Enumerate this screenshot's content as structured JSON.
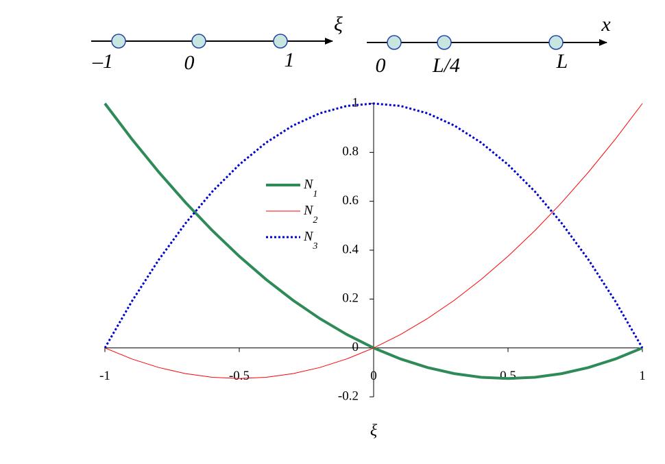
{
  "top_diagrams": {
    "natural": {
      "axis_label": "ξ",
      "labels": [
        "–1",
        "0",
        "1"
      ]
    },
    "physical": {
      "axis_label": "x",
      "labels": [
        "0",
        "L/4",
        "L"
      ]
    }
  },
  "chart_data": {
    "type": "line",
    "x_label": "ξ",
    "x": [
      -1,
      -0.9,
      -0.8,
      -0.7,
      -0.6,
      -0.5,
      -0.4,
      -0.3,
      -0.2,
      -0.1,
      0,
      0.1,
      0.2,
      0.3,
      0.4,
      0.5,
      0.6,
      0.7,
      0.8,
      0.9,
      1
    ],
    "series": [
      {
        "name": "N1",
        "color": "#2e8b57",
        "values": [
          1,
          0.855,
          0.72,
          0.595,
          0.48,
          0.375,
          0.28,
          0.195,
          0.12,
          0.055,
          0,
          -0.045,
          -0.08,
          -0.105,
          -0.12,
          -0.125,
          -0.12,
          -0.105,
          -0.08,
          -0.045,
          0
        ]
      },
      {
        "name": "N2",
        "color": "#ff0000",
        "values": [
          0,
          -0.045,
          -0.08,
          -0.105,
          -0.12,
          -0.125,
          -0.12,
          -0.105,
          -0.08,
          -0.045,
          0,
          0.055,
          0.12,
          0.195,
          0.28,
          0.375,
          0.48,
          0.595,
          0.72,
          0.855,
          1
        ]
      },
      {
        "name": "N3",
        "color": "#0000cc",
        "values": [
          0,
          0.19,
          0.36,
          0.51,
          0.64,
          0.75,
          0.84,
          0.91,
          0.96,
          0.99,
          1,
          0.99,
          0.96,
          0.91,
          0.84,
          0.75,
          0.64,
          0.51,
          0.36,
          0.19,
          0
        ]
      }
    ],
    "xlim": [
      -1,
      1
    ],
    "xticks": [
      -1,
      -0.5,
      0,
      0.5,
      1
    ],
    "ylim": [
      -0.2,
      1
    ],
    "yticks": [
      -0.2,
      0,
      0.2,
      0.4,
      0.6,
      0.8,
      1
    ],
    "legend": "upper-left"
  }
}
